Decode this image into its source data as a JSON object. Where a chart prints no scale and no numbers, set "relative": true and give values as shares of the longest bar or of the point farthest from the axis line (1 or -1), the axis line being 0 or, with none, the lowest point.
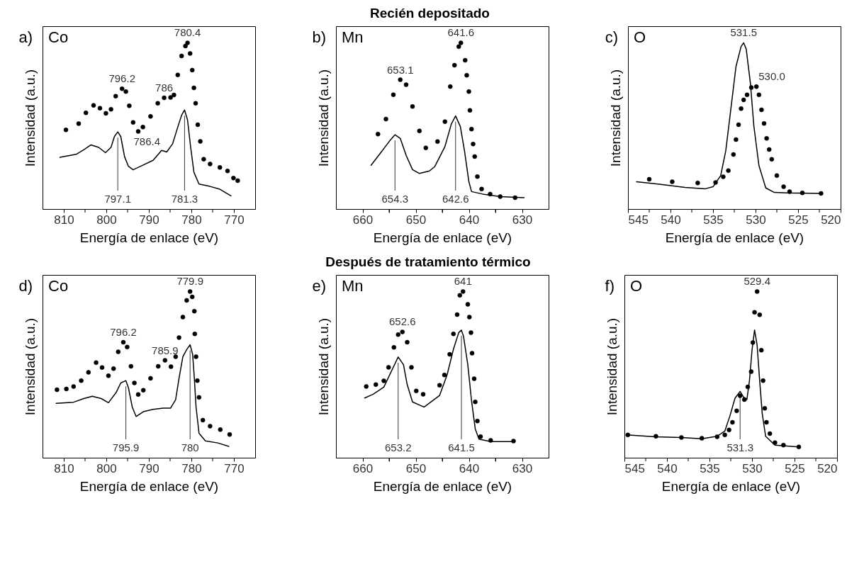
{
  "chart_data": [
    {
      "type": "other",
      "title": "Recién depositado"
    },
    {
      "type": "line",
      "title": "a)",
      "xlabel": "Energía de enlace (eV)",
      "ylabel": "Intensidad (a.u.)",
      "relative": true,
      "tick_labels": "x",
      "xlim": [
        815,
        765
      ],
      "xticks": [
        810,
        {
          "value": 805,
          "label": null
        },
        800,
        {
          "value": 795,
          "label": null
        },
        790,
        {
          "value": 785,
          "label": null
        },
        780,
        {
          "value": 775,
          "label": null
        },
        770
      ],
      "series": [
        {
          "type": "scatter",
          "color": "#000000",
          "x": [
            809.5,
            806.5,
            804.8,
            803.0,
            801.5,
            800.1,
            798.9,
            797.8,
            796.3,
            795.4,
            794.6,
            793.7,
            792.5,
            791.4,
            789.6,
            787.9,
            786.4,
            784.9,
            784.1,
            783.2,
            782.3,
            781.4,
            780.9,
            780.3,
            779.8,
            779.4,
            779.0,
            778.5,
            777.9,
            777.1,
            775.6,
            773.3,
            771.5,
            770.1,
            769.1
          ],
          "values": [
            0.476,
            0.514,
            0.579,
            0.624,
            0.607,
            0.576,
            0.6,
            0.679,
            0.724,
            0.707,
            0.621,
            0.521,
            0.467,
            0.493,
            0.557,
            0.636,
            0.669,
            0.671,
            0.686,
            0.807,
            0.921,
            0.981,
            1,
            0.936,
            0.836,
            0.729,
            0.636,
            0.507,
            0.407,
            0.3,
            0.271,
            0.25,
            0.229,
            0.186,
            0.171
          ]
        },
        {
          "type": "line",
          "color": "#000000",
          "x": [
            810.9,
            807.1,
            805.3,
            803.6,
            801.8,
            800.2,
            798.9,
            798.1,
            797.3,
            796.6,
            795.7,
            794.8,
            793.7,
            791.4,
            789.0,
            787.0,
            785.8,
            784.4,
            783.2,
            782.3,
            781.6,
            780.9,
            780.2,
            779.4,
            778.2,
            775.6,
            773.3,
            770.7
          ],
          "values": [
            0.311,
            0.329,
            0.357,
            0.386,
            0.371,
            0.339,
            0.371,
            0.436,
            0.464,
            0.436,
            0.314,
            0.257,
            0.236,
            0.264,
            0.293,
            0.353,
            0.343,
            0.393,
            0.493,
            0.564,
            0.596,
            0.536,
            0.379,
            0.221,
            0.15,
            0.136,
            0.119,
            0.079
          ]
        }
      ],
      "annotations": [
        "Co",
        {
          "text": "796.2",
          "x": 796.3,
          "y": 0.724
        },
        {
          "text": "786",
          "x": 786.4,
          "y": 0.669
        },
        {
          "text": "780.4",
          "x": 780.9,
          "y": 1
        },
        {
          "text": "786.4",
          "x": 787.0,
          "y": 0.353
        },
        {
          "text": "797.1",
          "x": 797.3,
          "y": 0.464
        },
        {
          "text": "781.3",
          "x": 781.6,
          "y": 0.596
        }
      ]
    },
    {
      "type": "line",
      "title": "b)",
      "xlabel": "Energía de enlace (eV)",
      "ylabel": "Intensidad (a.u.)",
      "relative": true,
      "tick_labels": "x",
      "xlim": [
        665,
        625
      ],
      "xticks": [
        660,
        {
          "value": 655,
          "label": null
        },
        650,
        {
          "value": 645,
          "label": null
        },
        640,
        {
          "value": 635,
          "label": null
        },
        630
      ],
      "series": [
        {
          "type": "scatter",
          "color": "#000000",
          "x": [
            657.1,
            655.6,
            654.2,
            652.9,
            651.8,
            650.6,
            649.3,
            648.1,
            645.9,
            644.5,
            643.5,
            642.7,
            641.9,
            641.5,
            640.7,
            640.4,
            640.0,
            639.8,
            639.5,
            639.2,
            638.9,
            638.4,
            637.6,
            636.0,
            634.1,
            631.3
          ],
          "values": [
            0.451,
            0.541,
            0.688,
            0.778,
            0.748,
            0.617,
            0.47,
            0.368,
            0.406,
            0.526,
            0.737,
            0.865,
            0.977,
            1,
            0.895,
            0.805,
            0.707,
            0.594,
            0.481,
            0.391,
            0.316,
            0.195,
            0.12,
            0.09,
            0.075,
            0.068
          ]
        },
        {
          "type": "line",
          "color": "#000000",
          "x": [
            658.4,
            656.6,
            654.9,
            653.9,
            652.9,
            651.8,
            650.6,
            649.3,
            647.4,
            646.4,
            644.5,
            643.3,
            642.5,
            641.6,
            640.8,
            640.0,
            639.5,
            637.4,
            634.1,
            629.6
          ],
          "values": [
            0.263,
            0.338,
            0.41,
            0.447,
            0.425,
            0.323,
            0.237,
            0.214,
            0.229,
            0.256,
            0.376,
            0.511,
            0.56,
            0.496,
            0.346,
            0.165,
            0.105,
            0.09,
            0.075,
            0.068
          ]
        }
      ],
      "annotations": [
        "Mn",
        {
          "text": "653.1",
          "x": 652.9,
          "y": 0.778
        },
        {
          "text": "641.6",
          "x": 641.5,
          "y": 1
        },
        {
          "text": "654.3",
          "x": 653.9,
          "y": 0.447
        },
        {
          "text": "642.6",
          "x": 642.5,
          "y": 0.56
        }
      ]
    },
    {
      "type": "line",
      "title": "c)",
      "xlabel": "Energía de enlace (eV)",
      "ylabel": "Intensidad (a.u.)",
      "relative": true,
      "tick_labels": "x",
      "xlim": [
        545,
        520
      ],
      "xticks": [
        545,
        {
          "value": 542.5,
          "label": null
        },
        540,
        {
          "value": 537.5,
          "label": null
        },
        535,
        {
          "value": 532.5,
          "label": null
        },
        530,
        {
          "value": 527.5,
          "label": null
        },
        525,
        {
          "value": 522.5,
          "label": null
        },
        520
      ],
      "series": [
        {
          "type": "line",
          "color": "#000000",
          "x": [
            544.0,
            541.3,
            538.3,
            535.9,
            535.0,
            534.1,
            533.5,
            532.9,
            532.3,
            531.7,
            531.4,
            531.1,
            530.6,
            530.2,
            529.6,
            528.8,
            527.8,
            526.3,
            522.3
          ],
          "values": [
            0.164,
            0.149,
            0.13,
            0.122,
            0.134,
            0.201,
            0.351,
            0.604,
            0.858,
            0.978,
            1,
            0.963,
            0.754,
            0.5,
            0.261,
            0.127,
            0.1,
            0.097,
            0.094
          ]
        },
        {
          "type": "scatter",
          "color": "#000000",
          "x": [
            542.5,
            539.8,
            536.8,
            534.7,
            533.8,
            533.2,
            532.6,
            532.3,
            532.0,
            531.7,
            531.4,
            531.0,
            530.5,
            529.9,
            529.6,
            529.3,
            529.0,
            528.7,
            528.4,
            528.1,
            527.5,
            526.7,
            526.0,
            524.5,
            522.3
          ],
          "values": [
            0.179,
            0.164,
            0.157,
            0.16,
            0.194,
            0.231,
            0.328,
            0.418,
            0.507,
            0.604,
            0.657,
            0.687,
            0.731,
            0.736,
            0.687,
            0.597,
            0.515,
            0.425,
            0.358,
            0.299,
            0.201,
            0.134,
            0.104,
            0.097,
            0.094
          ]
        }
      ],
      "annotations": [
        "O",
        {
          "text": "531.5",
          "x": 531.4,
          "y": 1
        },
        {
          "text": "530.0",
          "x": 529.9,
          "y": 0.736
        }
      ]
    },
    {
      "type": "other",
      "title": "Después de tratamiento térmico"
    },
    {
      "type": "line",
      "title": "d)",
      "xlabel": "Energía de enlace (eV)",
      "ylabel": "Intensidad (a.u.)",
      "relative": true,
      "tick_labels": "x",
      "xlim": [
        815,
        765
      ],
      "xticks": [
        810,
        {
          "value": 805,
          "label": null
        },
        800,
        {
          "value": 795,
          "label": null
        },
        790,
        {
          "value": 785,
          "label": null
        },
        780,
        {
          "value": 775,
          "label": null
        },
        770
      ],
      "series": [
        {
          "type": "scatter",
          "color": "#000000",
          "x": [
            811.6,
            809.4,
            807.7,
            805.9,
            804.2,
            802.4,
            801.0,
            799.5,
            798.3,
            797.2,
            796.0,
            795.1,
            794.2,
            793.4,
            792.5,
            791.3,
            789.6,
            787.8,
            786.2,
            784.8,
            783.7,
            782.9,
            782.0,
            781.1,
            780.3,
            779.8,
            779.3,
            779.2,
            778.9,
            778.6,
            778.2,
            777.3,
            775.6,
            773.2,
            771.0
          ],
          "values": [
            0.409,
            0.414,
            0.428,
            0.464,
            0.514,
            0.572,
            0.543,
            0.493,
            0.536,
            0.637,
            0.695,
            0.666,
            0.55,
            0.45,
            0.38,
            0.406,
            0.478,
            0.55,
            0.586,
            0.548,
            0.608,
            0.723,
            0.846,
            0.947,
            1,
            0.968,
            0.882,
            0.745,
            0.608,
            0.464,
            0.363,
            0.226,
            0.19,
            0.169,
            0.14
          ]
        },
        {
          "type": "line",
          "color": "#000000",
          "x": [
            811.8,
            807.7,
            805.3,
            803.3,
            801.2,
            799.5,
            797.7,
            796.6,
            795.4,
            794.8,
            793.9,
            793.0,
            791.3,
            789.0,
            786.6,
            784.9,
            783.7,
            782.9,
            782.0,
            781.1,
            780.3,
            779.7,
            779.3,
            778.9,
            778.2,
            776.7,
            773.8,
            771.2
          ],
          "values": [
            0.327,
            0.334,
            0.356,
            0.37,
            0.356,
            0.331,
            0.392,
            0.45,
            0.464,
            0.421,
            0.305,
            0.248,
            0.277,
            0.291,
            0.298,
            0.298,
            0.349,
            0.478,
            0.608,
            0.651,
            0.68,
            0.622,
            0.478,
            0.305,
            0.147,
            0.101,
            0.089,
            0.068
          ]
        }
      ],
      "annotations": [
        "Co",
        {
          "text": "796.2",
          "x": 796.0,
          "y": 0.695
        },
        {
          "text": "785.9",
          "x": 786.2,
          "y": 0.586
        },
        {
          "text": "779.9",
          "x": 780.3,
          "y": 1
        },
        {
          "text": "795.9",
          "x": 795.4,
          "y": 0.464
        },
        {
          "text": "780",
          "x": 780.3,
          "y": 0.68
        }
      ]
    },
    {
      "type": "line",
      "title": "e)",
      "xlabel": "Energía de enlace (eV)",
      "ylabel": "Intensidad (a.u.)",
      "relative": true,
      "tick_labels": "x",
      "xlim": [
        665,
        625
      ],
      "xticks": [
        660,
        {
          "value": 655,
          "label": null
        },
        650,
        {
          "value": 645,
          "label": null
        },
        640,
        {
          "value": 635,
          "label": null
        },
        630
      ],
      "series": [
        {
          "type": "scatter",
          "color": "#000000",
          "x": [
            659.3,
            657.5,
            656.0,
            655.1,
            654.1,
            653.3,
            652.5,
            651.6,
            650.8,
            649.9,
            648.6,
            645.5,
            644.6,
            643.6,
            642.9,
            642.2,
            641.7,
            641.1,
            640.2,
            639.9,
            639.6,
            639.4,
            639.0,
            638.8,
            638.4,
            637.8,
            635.9,
            631.6
          ],
          "values": [
            0.429,
            0.44,
            0.463,
            0.544,
            0.664,
            0.741,
            0.757,
            0.695,
            0.544,
            0.402,
            0.382,
            0.436,
            0.498,
            0.622,
            0.745,
            0.861,
            0.977,
            1,
            0.923,
            0.846,
            0.753,
            0.629,
            0.475,
            0.336,
            0.221,
            0.127,
            0.104,
            0.1
          ]
        },
        {
          "type": "line",
          "color": "#000000",
          "x": [
            659.6,
            658.0,
            656.0,
            654.1,
            653.3,
            652.3,
            651.6,
            650.6,
            649.0,
            648.4,
            645.5,
            644.1,
            642.9,
            641.9,
            641.4,
            641.0,
            640.2,
            639.5,
            638.8,
            638.1,
            635.9,
            631.6
          ],
          "values": [
            0.359,
            0.382,
            0.425,
            0.552,
            0.606,
            0.56,
            0.44,
            0.336,
            0.313,
            0.305,
            0.375,
            0.498,
            0.653,
            0.753,
            0.768,
            0.73,
            0.56,
            0.344,
            0.174,
            0.112,
            0.097,
            0.097
          ]
        }
      ],
      "annotations": [
        "Mn",
        {
          "text": "652.6",
          "x": 652.5,
          "y": 0.757
        },
        {
          "text": "641",
          "x": 641.1,
          "y": 1
        },
        {
          "text": "653.2",
          "x": 653.3,
          "y": 0.606
        },
        {
          "text": "641.5",
          "x": 641.4,
          "y": 0.768
        }
      ]
    },
    {
      "type": "line",
      "title": "f)",
      "xlabel": "Energía de enlace (eV)",
      "ylabel": "Intensidad (a.u.)",
      "relative": true,
      "tick_labels": "x",
      "xlim": [
        545,
        520
      ],
      "xticks": [
        545,
        {
          "value": 542.5,
          "label": null
        },
        540,
        {
          "value": 537.5,
          "label": null
        },
        535,
        {
          "value": 532.5,
          "label": null
        },
        530,
        {
          "value": 527.5,
          "label": null
        },
        525,
        {
          "value": 522.5,
          "label": null
        },
        520
      ],
      "series": [
        {
          "type": "scatter",
          "color": "#000000",
          "x": [
            544.6,
            541.3,
            538.3,
            535.9,
            534.1,
            533.2,
            532.7,
            532.3,
            531.8,
            531.4,
            530.9,
            530.5,
            530.1,
            529.9,
            529.7,
            529.4,
            529.1,
            528.9,
            528.7,
            528.5,
            528.3,
            527.9,
            527.3,
            526.3,
            524.5
          ],
          "values": [
            0.137,
            0.129,
            0.122,
            0.117,
            0.126,
            0.137,
            0.167,
            0.213,
            0.282,
            0.373,
            0.35,
            0.426,
            0.518,
            0.693,
            0.875,
            1,
            0.86,
            0.647,
            0.464,
            0.297,
            0.213,
            0.145,
            0.091,
            0.076,
            0.065
          ]
        },
        {
          "type": "line",
          "color": "#000000",
          "x": [
            544.8,
            541.3,
            538.3,
            535.9,
            534.1,
            533.2,
            532.6,
            532.0,
            531.4,
            531.0,
            530.6,
            530.3,
            530.0,
            529.7,
            529.4,
            529.1,
            528.8,
            528.4,
            527.3,
            524.5
          ],
          "values": [
            0.137,
            0.126,
            0.122,
            0.114,
            0.129,
            0.16,
            0.251,
            0.358,
            0.399,
            0.365,
            0.35,
            0.464,
            0.647,
            0.769,
            0.677,
            0.464,
            0.266,
            0.129,
            0.076,
            0.065
          ]
        }
      ],
      "annotations": [
        "O",
        {
          "text": "529.4",
          "x": 529.4,
          "y": 1
        },
        {
          "text": "531.3",
          "x": 531.4,
          "y": 0.399
        }
      ]
    }
  ]
}
